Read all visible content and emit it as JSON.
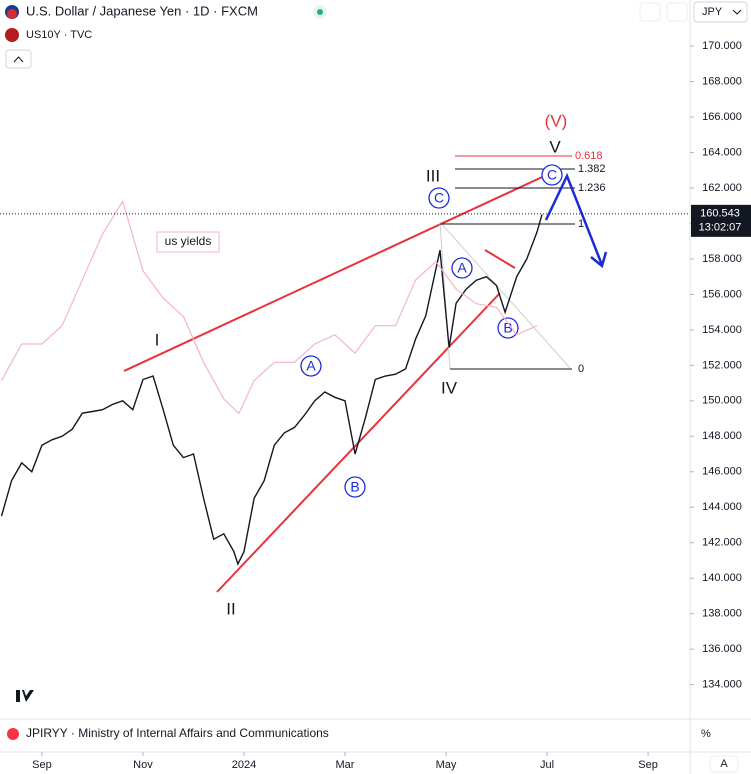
{
  "header": {
    "title": "U.S. Dollar / Japanese Yen · 1D · FXCM",
    "overlay": "US10Y · TVC",
    "currency": "JPY"
  },
  "chart_data": {
    "type": "line",
    "xlim": [
      8.17,
      21.83
    ],
    "xticks": [
      {
        "value": 9,
        "label": "Sep"
      },
      {
        "value": 11,
        "label": "Nov"
      },
      {
        "value": 13,
        "label": "2024"
      },
      {
        "value": 15,
        "label": "Mar"
      },
      {
        "value": 17,
        "label": "May"
      },
      {
        "value": 19,
        "label": "Jul"
      },
      {
        "value": 21,
        "label": "Sep"
      }
    ],
    "ylim": [
      130.2,
      172.6
    ],
    "yticks": [
      {
        "value": 170,
        "label": "170.000"
      },
      {
        "value": 168,
        "label": "168.000"
      },
      {
        "value": 166,
        "label": "166.000"
      },
      {
        "value": 164,
        "label": "164.000"
      },
      {
        "value": 162,
        "label": "162.000"
      },
      {
        "value": 160,
        "label": "160.000"
      },
      {
        "value": 158,
        "label": "158.000"
      },
      {
        "value": 156,
        "label": "156.000"
      },
      {
        "value": 154,
        "label": "154.000"
      },
      {
        "value": 152,
        "label": "152.000"
      },
      {
        "value": 150,
        "label": "150.000"
      },
      {
        "value": 148,
        "label": "148.000"
      },
      {
        "value": 146,
        "label": "146.000"
      },
      {
        "value": 144,
        "label": "144.000"
      },
      {
        "value": 142,
        "label": "142.000"
      },
      {
        "value": 140,
        "label": "140.000"
      },
      {
        "value": 138,
        "label": "138.000"
      },
      {
        "value": 136,
        "label": "136.000"
      },
      {
        "value": 134,
        "label": "134.000"
      }
    ],
    "y2lim": [
      1.97,
      6.08
    ],
    "series": [
      {
        "color": "#131722",
        "x": [
          8.2,
          8.4,
          8.6,
          8.8,
          9.0,
          9.2,
          9.4,
          9.6,
          9.8,
          10.0,
          10.2,
          10.4,
          10.6,
          10.8,
          11.0,
          11.2,
          11.4,
          11.6,
          11.8,
          12.0,
          12.2,
          12.4,
          12.6,
          12.8,
          12.88,
          13.0,
          13.2,
          13.4,
          13.6,
          13.8,
          14.0,
          14.2,
          14.4,
          14.6,
          14.8,
          15.0,
          15.2,
          15.4,
          15.6,
          15.8,
          16.0,
          16.2,
          16.4,
          16.6,
          16.88,
          17.06,
          17.2,
          17.4,
          17.6,
          17.8,
          18.0,
          18.17,
          18.4,
          18.6,
          18.8,
          18.9
        ],
        "values": [
          143.5,
          145.5,
          146.5,
          146.0,
          147.5,
          147.8,
          148.0,
          148.4,
          149.3,
          149.4,
          149.5,
          149.8,
          150.0,
          149.5,
          151.2,
          151.4,
          149.5,
          147.5,
          146.8,
          147.0,
          144.5,
          142.2,
          142.5,
          141.5,
          140.8,
          141.5,
          144.5,
          145.5,
          147.5,
          148.2,
          148.5,
          149.2,
          150.0,
          150.5,
          150.2,
          150.0,
          147.0,
          149.0,
          151.2,
          151.4,
          151.5,
          151.8,
          153.5,
          154.8,
          158.5,
          153.0,
          155.5,
          156.3,
          156.8,
          157.0,
          156.5,
          155.0,
          157.0,
          158.0,
          159.5,
          160.5
        ]
      },
      {
        "color": "#f5b3cb",
        "axis": "y2",
        "label": "us yields",
        "x": [
          8.2,
          8.6,
          9.0,
          9.4,
          9.8,
          10.2,
          10.6,
          11.0,
          11.4,
          11.8,
          12.2,
          12.6,
          12.9,
          13.2,
          13.6,
          14.0,
          14.4,
          14.8,
          15.2,
          15.6,
          16.0,
          16.4,
          16.8,
          17.2,
          17.6,
          18.0,
          18.4,
          18.8
        ],
        "values": [
          4.0,
          4.2,
          4.2,
          4.3,
          4.55,
          4.8,
          4.98,
          4.6,
          4.45,
          4.35,
          4.1,
          3.9,
          3.82,
          4.0,
          4.1,
          4.1,
          4.2,
          4.25,
          4.15,
          4.3,
          4.3,
          4.55,
          4.65,
          4.5,
          4.42,
          4.4,
          4.25,
          4.3
        ]
      }
    ],
    "last_price": 160.543,
    "countdown": "13:02:07",
    "wave_labels": [
      "(V)",
      "V",
      "III",
      "I",
      "II",
      "IV"
    ],
    "circle_labels": [
      "A",
      "B",
      "C",
      "A",
      "B",
      "C"
    ],
    "fib_labels": [
      "0.618",
      "1.382",
      "1.236",
      "1",
      "0"
    ]
  },
  "footer": {
    "indicator": "JPIRYY · Ministry of Internal Affairs and Communications",
    "scale_unit": "%",
    "auto": "A"
  }
}
